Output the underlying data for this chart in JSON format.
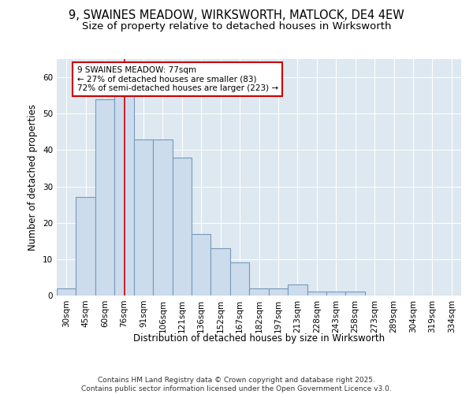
{
  "title_line1": "9, SWAINES MEADOW, WIRKSWORTH, MATLOCK, DE4 4EW",
  "title_line2": "Size of property relative to detached houses in Wirksworth",
  "xlabel": "Distribution of detached houses by size in Wirksworth",
  "ylabel": "Number of detached properties",
  "bar_color": "#ccdcec",
  "bar_edge_color": "#7799bb",
  "background_color": "#dde8f0",
  "grid_color": "#ffffff",
  "annotation_box_color": "#ffffff",
  "annotation_box_edge": "#cc0000",
  "marker_line_color": "#cc0000",
  "categories": [
    "30sqm",
    "45sqm",
    "60sqm",
    "76sqm",
    "91sqm",
    "106sqm",
    "121sqm",
    "136sqm",
    "152sqm",
    "167sqm",
    "182sqm",
    "197sqm",
    "213sqm",
    "228sqm",
    "243sqm",
    "258sqm",
    "273sqm",
    "289sqm",
    "304sqm",
    "319sqm",
    "334sqm"
  ],
  "values": [
    2,
    27,
    54,
    55,
    43,
    43,
    38,
    17,
    13,
    9,
    2,
    2,
    3,
    1,
    1,
    1,
    0,
    0,
    0,
    0,
    0
  ],
  "property_label": "9 SWAINES MEADOW: 77sqm",
  "pct_smaller": "27% of detached houses are smaller (83)",
  "pct_larger": "72% of semi-detached houses are larger (223)",
  "ylim": [
    0,
    65
  ],
  "yticks": [
    0,
    10,
    20,
    30,
    40,
    50,
    60
  ],
  "marker_bar_index": 3,
  "footer": "Contains HM Land Registry data © Crown copyright and database right 2025.\nContains public sector information licensed under the Open Government Licence v3.0.",
  "title_fontsize": 10.5,
  "subtitle_fontsize": 9.5,
  "axis_label_fontsize": 8.5,
  "tick_fontsize": 7.5,
  "annotation_fontsize": 7.5,
  "footer_fontsize": 6.5
}
